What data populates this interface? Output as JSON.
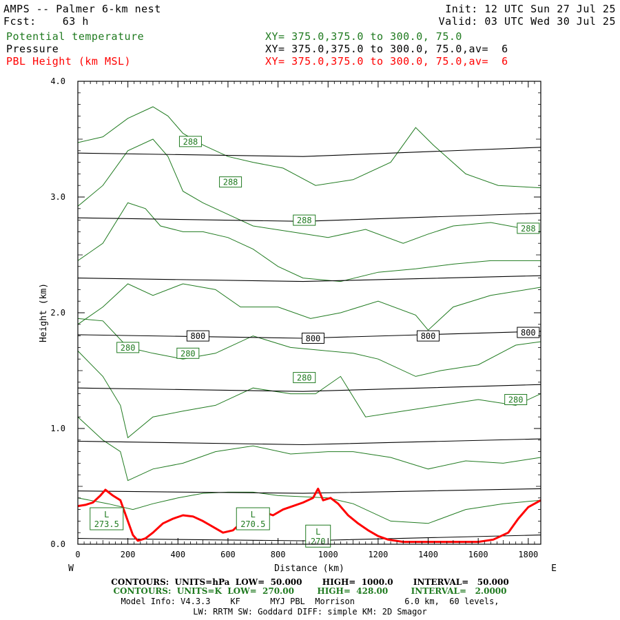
{
  "header": {
    "model": "AMPS -- Palmer 6-km nest",
    "fcst": "Fcst:    63 h",
    "init": "Init: 12 UTC Sun 27 Jul 25",
    "valid": "Valid: 03 UTC Wed 30 Jul 25",
    "fields": [
      {
        "name": "Potential temperature",
        "xy": "XY= 375.0,375.0 to 300.0, 75.0",
        "color": "#1f7a1f"
      },
      {
        "name": "Pressure",
        "xy": "XY= 375.0,375.0 to 300.0, 75.0,av=  6",
        "color": "#000000"
      },
      {
        "name": "PBL Height (km MSL)",
        "xy": "XY= 375.0,375.0 to 300.0, 75.0,av=  6",
        "color": "#ff0000"
      }
    ]
  },
  "chart_data": {
    "type": "line",
    "xlabel": "Distance (km)",
    "ylabel": "Height (km)",
    "xlim": [
      0,
      1850
    ],
    "ylim": [
      0,
      4.0
    ],
    "x_ticks": [
      0,
      200,
      400,
      600,
      800,
      1000,
      1200,
      1400,
      1600,
      1800
    ],
    "x_tick_labels": [
      "0",
      "200",
      "400",
      "600",
      "800",
      "1000",
      "1200",
      "1400",
      "1600",
      "1800"
    ],
    "y_ticks": [
      0,
      1.0,
      2.0,
      3.0,
      4.0
    ],
    "y_tick_labels": [
      "0.0",
      "1.0",
      "2.0",
      "3.0",
      "4.0"
    ],
    "left_end_label": "W",
    "right_end_label": "E",
    "pressure_color": "#000000",
    "theta_color": "#1f7a1f",
    "pbl_color": "#ff0000",
    "pressure_lines": [
      [
        [
          0,
          3.38
        ],
        [
          900,
          3.35
        ],
        [
          1850,
          3.43
        ]
      ],
      [
        [
          0,
          2.82
        ],
        [
          900,
          2.79
        ],
        [
          1850,
          2.86
        ]
      ],
      [
        [
          0,
          2.3
        ],
        [
          900,
          2.27
        ],
        [
          1850,
          2.32
        ]
      ],
      [
        [
          0,
          1.81
        ],
        [
          900,
          1.78
        ],
        [
          1850,
          1.84
        ]
      ],
      [
        [
          0,
          1.35
        ],
        [
          900,
          1.32
        ],
        [
          1850,
          1.38
        ]
      ],
      [
        [
          0,
          0.89
        ],
        [
          900,
          0.86
        ],
        [
          1850,
          0.91
        ]
      ],
      [
        [
          0,
          0.46
        ],
        [
          900,
          0.44
        ],
        [
          1850,
          0.48
        ]
      ],
      [
        [
          0,
          0.05
        ],
        [
          900,
          0.03
        ],
        [
          1850,
          0.08
        ]
      ]
    ],
    "pressure_labels": [
      {
        "text": "800",
        "x": 480,
        "y": 1.8
      },
      {
        "text": "800",
        "x": 940,
        "y": 1.78
      },
      {
        "text": "800",
        "x": 1400,
        "y": 1.8
      },
      {
        "text": "800",
        "x": 1800,
        "y": 1.83
      }
    ],
    "theta_lines": [
      [
        [
          0,
          3.47
        ],
        [
          100,
          3.52
        ],
        [
          200,
          3.68
        ],
        [
          300,
          3.78
        ],
        [
          360,
          3.7
        ],
        [
          420,
          3.55
        ],
        [
          500,
          3.45
        ],
        [
          600,
          3.35
        ],
        [
          700,
          3.3
        ],
        [
          820,
          3.25
        ],
        [
          950,
          3.1
        ],
        [
          1100,
          3.15
        ],
        [
          1250,
          3.3
        ],
        [
          1350,
          3.6
        ],
        [
          1420,
          3.45
        ],
        [
          1550,
          3.2
        ],
        [
          1680,
          3.1
        ],
        [
          1850,
          3.08
        ]
      ],
      [
        [
          0,
          2.92
        ],
        [
          100,
          3.1
        ],
        [
          200,
          3.4
        ],
        [
          300,
          3.5
        ],
        [
          360,
          3.35
        ],
        [
          420,
          3.05
        ],
        [
          500,
          2.95
        ],
        [
          600,
          2.85
        ],
        [
          700,
          2.75
        ],
        [
          850,
          2.7
        ],
        [
          1000,
          2.65
        ],
        [
          1150,
          2.72
        ],
        [
          1300,
          2.6
        ],
        [
          1400,
          2.68
        ],
        [
          1500,
          2.75
        ],
        [
          1650,
          2.78
        ],
        [
          1850,
          2.7
        ]
      ],
      [
        [
          0,
          2.45
        ],
        [
          100,
          2.6
        ],
        [
          200,
          2.95
        ],
        [
          270,
          2.9
        ],
        [
          330,
          2.75
        ],
        [
          420,
          2.7
        ],
        [
          500,
          2.7
        ],
        [
          600,
          2.65
        ],
        [
          700,
          2.55
        ],
        [
          800,
          2.4
        ],
        [
          900,
          2.3
        ],
        [
          1050,
          2.27
        ],
        [
          1200,
          2.35
        ],
        [
          1350,
          2.38
        ],
        [
          1500,
          2.42
        ],
        [
          1650,
          2.45
        ],
        [
          1850,
          2.45
        ]
      ],
      [
        [
          0,
          1.9
        ],
        [
          100,
          2.05
        ],
        [
          200,
          2.25
        ],
        [
          300,
          2.15
        ],
        [
          420,
          2.25
        ],
        [
          550,
          2.2
        ],
        [
          650,
          2.05
        ],
        [
          800,
          2.05
        ],
        [
          930,
          1.95
        ],
        [
          1050,
          2.0
        ],
        [
          1200,
          2.1
        ],
        [
          1350,
          1.98
        ],
        [
          1400,
          1.85
        ],
        [
          1500,
          2.05
        ],
        [
          1650,
          2.15
        ],
        [
          1850,
          2.22
        ]
      ],
      [
        [
          0,
          1.95
        ],
        [
          100,
          1.93
        ],
        [
          200,
          1.7
        ],
        [
          300,
          1.65
        ],
        [
          420,
          1.6
        ],
        [
          550,
          1.65
        ],
        [
          700,
          1.8
        ],
        [
          850,
          1.7
        ],
        [
          950,
          1.68
        ],
        [
          1100,
          1.65
        ],
        [
          1200,
          1.6
        ],
        [
          1350,
          1.45
        ],
        [
          1450,
          1.5
        ],
        [
          1600,
          1.55
        ],
        [
          1750,
          1.72
        ],
        [
          1850,
          1.75
        ]
      ],
      [
        [
          0,
          1.67
        ],
        [
          100,
          1.45
        ],
        [
          170,
          1.2
        ],
        [
          200,
          0.92
        ],
        [
          300,
          1.1
        ],
        [
          420,
          1.15
        ],
        [
          550,
          1.2
        ],
        [
          700,
          1.35
        ],
        [
          850,
          1.3
        ],
        [
          950,
          1.3
        ],
        [
          1050,
          1.45
        ],
        [
          1150,
          1.1
        ],
        [
          1300,
          1.15
        ],
        [
          1450,
          1.2
        ],
        [
          1600,
          1.25
        ],
        [
          1750,
          1.2
        ],
        [
          1850,
          1.3
        ]
      ],
      [
        [
          0,
          1.1
        ],
        [
          100,
          0.9
        ],
        [
          170,
          0.8
        ],
        [
          200,
          0.55
        ],
        [
          300,
          0.65
        ],
        [
          420,
          0.7
        ],
        [
          550,
          0.8
        ],
        [
          700,
          0.85
        ],
        [
          850,
          0.78
        ],
        [
          1000,
          0.8
        ],
        [
          1100,
          0.8
        ],
        [
          1250,
          0.75
        ],
        [
          1400,
          0.65
        ],
        [
          1550,
          0.72
        ],
        [
          1700,
          0.7
        ],
        [
          1850,
          0.75
        ]
      ],
      [
        [
          0,
          0.4
        ],
        [
          120,
          0.35
        ],
        [
          220,
          0.3
        ],
        [
          300,
          0.35
        ],
        [
          400,
          0.4
        ],
        [
          500,
          0.44
        ],
        [
          600,
          0.45
        ],
        [
          700,
          0.45
        ],
        [
          800,
          0.42
        ],
        [
          1000,
          0.4
        ],
        [
          1100,
          0.35
        ],
        [
          1250,
          0.2
        ],
        [
          1400,
          0.18
        ],
        [
          1550,
          0.3
        ],
        [
          1700,
          0.35
        ],
        [
          1850,
          0.38
        ]
      ]
    ],
    "theta_labels": [
      {
        "text": "288",
        "x": 450,
        "y": 3.48
      },
      {
        "text": "288",
        "x": 610,
        "y": 3.13
      },
      {
        "text": "288",
        "x": 905,
        "y": 2.8
      },
      {
        "text": "288",
        "x": 1800,
        "y": 2.73
      },
      {
        "text": "280",
        "x": 200,
        "y": 1.7
      },
      {
        "text": "280",
        "x": 440,
        "y": 1.65
      },
      {
        "text": "280",
        "x": 905,
        "y": 1.44
      },
      {
        "text": "280",
        "x": 1750,
        "y": 1.25
      }
    ],
    "low_labels": [
      {
        "letter": "L",
        "value": "273.5",
        "x": 115,
        "y": 0.22
      },
      {
        "letter": "L",
        "value": "270.5",
        "x": 700,
        "y": 0.22
      },
      {
        "letter": "L",
        "value": "270",
        "x": 960,
        "y": 0.07
      }
    ],
    "pbl_height": [
      [
        0,
        0.33
      ],
      [
        30,
        0.34
      ],
      [
        60,
        0.36
      ],
      [
        90,
        0.42
      ],
      [
        110,
        0.47
      ],
      [
        140,
        0.42
      ],
      [
        170,
        0.38
      ],
      [
        200,
        0.2
      ],
      [
        220,
        0.08
      ],
      [
        240,
        0.03
      ],
      [
        270,
        0.05
      ],
      [
        300,
        0.1
      ],
      [
        340,
        0.18
      ],
      [
        380,
        0.22
      ],
      [
        420,
        0.25
      ],
      [
        460,
        0.24
      ],
      [
        500,
        0.2
      ],
      [
        540,
        0.15
      ],
      [
        580,
        0.1
      ],
      [
        620,
        0.12
      ],
      [
        660,
        0.2
      ],
      [
        700,
        0.25
      ],
      [
        740,
        0.28
      ],
      [
        780,
        0.25
      ],
      [
        820,
        0.3
      ],
      [
        860,
        0.33
      ],
      [
        900,
        0.36
      ],
      [
        940,
        0.4
      ],
      [
        960,
        0.48
      ],
      [
        980,
        0.38
      ],
      [
        1010,
        0.4
      ],
      [
        1040,
        0.35
      ],
      [
        1080,
        0.25
      ],
      [
        1120,
        0.18
      ],
      [
        1160,
        0.12
      ],
      [
        1200,
        0.07
      ],
      [
        1240,
        0.04
      ],
      [
        1300,
        0.02
      ],
      [
        1400,
        0.02
      ],
      [
        1500,
        0.02
      ],
      [
        1600,
        0.02
      ],
      [
        1660,
        0.04
      ],
      [
        1720,
        0.1
      ],
      [
        1760,
        0.22
      ],
      [
        1800,
        0.32
      ],
      [
        1850,
        0.38
      ]
    ]
  },
  "footer": {
    "pressure_contours": "CONTOURS:  UNITS=hPa  LOW=  50.000       HIGH=  1000.0       INTERVAL=   50.000",
    "theta_contours": "CONTOURS:  UNITS=K  LOW=  270.00        HIGH=  428.00        INTERVAL=   2.0000",
    "model_info": "Model Info: V4.3.3    KF      MYJ PBL  Morrison          6.0 km,  60 levels,",
    "physics_info": "LW: RRTM SW: Goddard DIFF: simple KM: 2D Smagor"
  }
}
